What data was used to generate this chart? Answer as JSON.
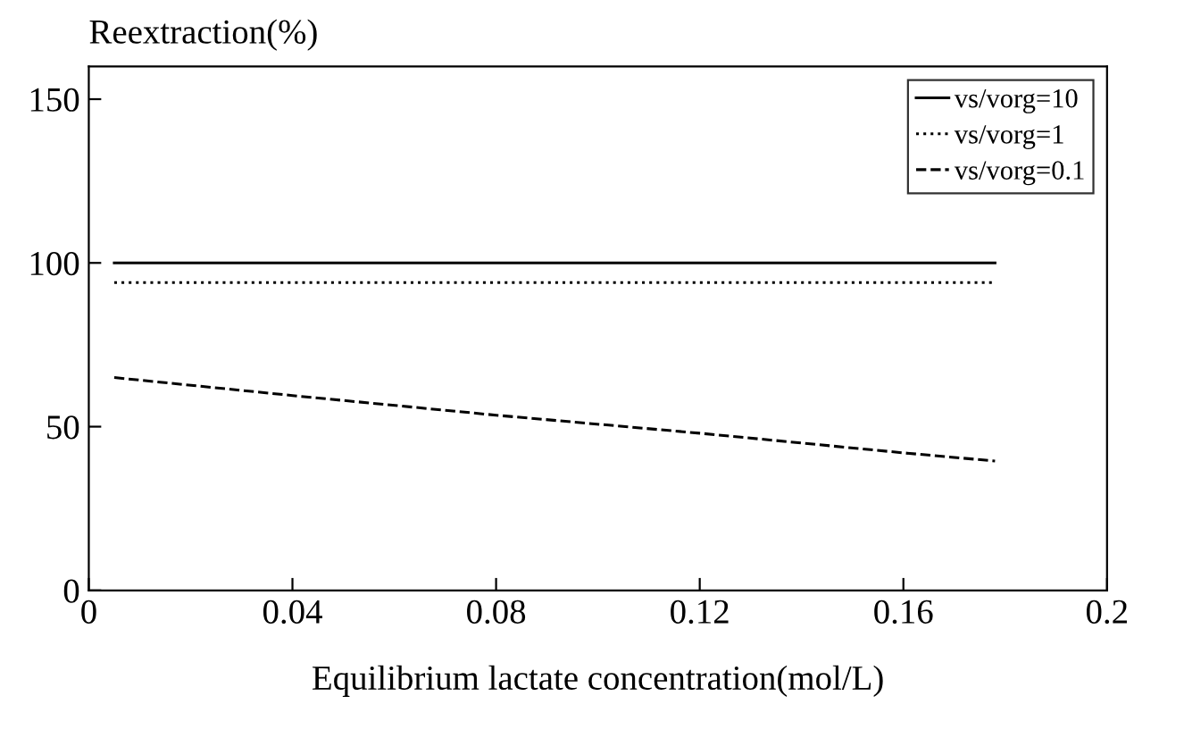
{
  "chart_data": {
    "type": "line",
    "ylabel": "Reextraction(%)",
    "xlabel": "Equilibrium lactate concentration(mol/L)",
    "xlim": [
      0,
      0.2
    ],
    "xticks": [
      0,
      0.04,
      0.08,
      0.12,
      0.16,
      0.2
    ],
    "ylim": [
      0,
      160
    ],
    "yticks": [
      0,
      50,
      100,
      150
    ],
    "grid": false,
    "legend": "top right",
    "marker": "none",
    "series": [
      {
        "name": "vs/vorg=10",
        "color": "#000000",
        "line_style": "solid",
        "x": [
          0.005,
          0.178
        ],
        "values": [
          100,
          100
        ]
      },
      {
        "name": "vs/vorg=1",
        "color": "#000000",
        "line_style": "dotted",
        "x": [
          0.005,
          0.178
        ],
        "values": [
          94,
          94
        ]
      },
      {
        "name": "vs/vorg=0.1",
        "color": "#000000",
        "line_style": "dashed",
        "x": [
          0.005,
          0.04,
          0.08,
          0.12,
          0.16,
          0.178
        ],
        "values": [
          65,
          59.5,
          53.5,
          48,
          42,
          39.5
        ]
      }
    ]
  }
}
